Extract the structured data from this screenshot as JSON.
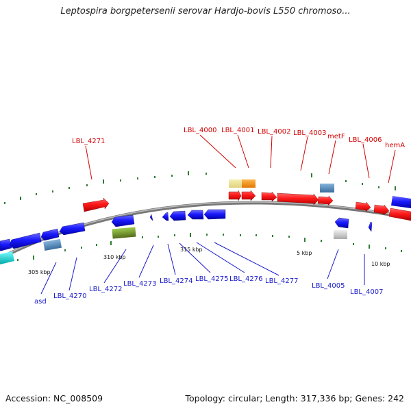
{
  "header": {
    "title": "Leptospira borgpetersenii serovar Hardjo-bovis L550 chromoso..."
  },
  "footer": {
    "accession": "Accession: NC_008509",
    "summary": "Topology: circular; Length: 317,336 bp; Genes: 242"
  },
  "colors": {
    "forward_gene": "#ff1a1a",
    "reverse_gene": "#1a1aff",
    "rna_gene": "#4682b4",
    "pseudo_gene": "#6b8e23",
    "other_gene": "#00cccc",
    "backbone": "#888888",
    "tick_mark": "#2e7d32",
    "label_forward": "#d40000",
    "label_reverse": "#1a1acc"
  },
  "scale_labels": [
    "305 kbp",
    "310 kbp",
    "315 kbp",
    "5 kbp",
    "10 kbp"
  ],
  "gene_labels": {
    "forward": [
      "LBL_4271",
      "LBL_4000",
      "LBL_4001",
      "LBL_4002",
      "LBL_4003",
      "metF",
      "LBL_4006",
      "hemA"
    ],
    "reverse": [
      "asd",
      "LBL_4270",
      "LBL_4272",
      "LBL_4273",
      "LBL_4274",
      "LBL_4275",
      "LBL_4276",
      "LBL_4277",
      "LBL_4005",
      "LBL_4007"
    ]
  }
}
